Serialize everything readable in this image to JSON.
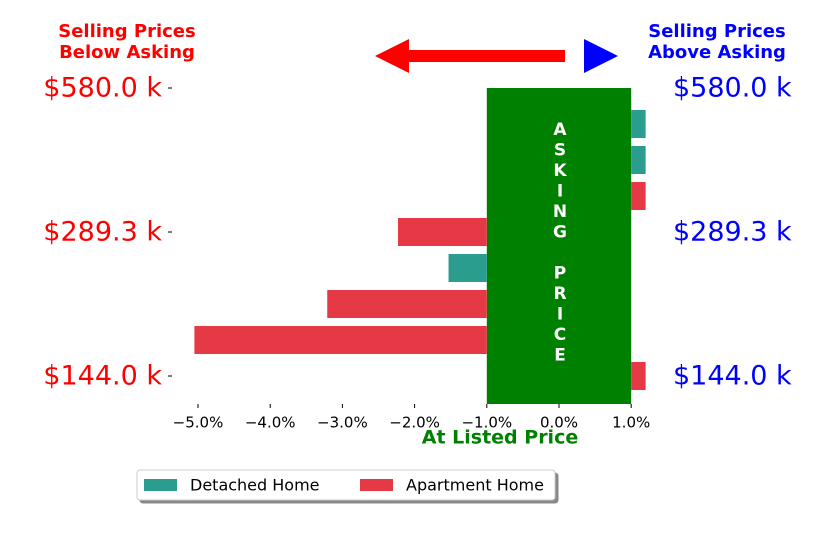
{
  "chart_data": {
    "type": "bar",
    "orientation": "horizontal",
    "left_header": [
      "Selling Prices",
      "Below Asking"
    ],
    "right_header": [
      "Selling Prices",
      "Above Asking"
    ],
    "band_label": "ASKING PRICE",
    "xlabel": "At Listed Price",
    "band": [
      -1.0,
      1.0
    ],
    "band_color": "#008000",
    "categories": [
      "$580.0 k",
      null,
      null,
      null,
      "$289.3 k",
      null,
      null,
      null,
      "$144.0 k"
    ],
    "series": [
      {
        "name": "Detached Home",
        "color": "#2a9d8f",
        "values": [
          null,
          1.2,
          1.2,
          null,
          null,
          -1.53,
          null,
          null,
          null
        ]
      },
      {
        "name": "Apartment Home",
        "color": "#e63946",
        "values": [
          null,
          null,
          null,
          1.2,
          -2.23,
          null,
          -3.21,
          -5.05,
          1.2
        ]
      }
    ],
    "xlim": [
      -5.4,
      1.2
    ],
    "xticks": [
      {
        "value": -5,
        "label": "−5.0%"
      },
      {
        "value": -4,
        "label": "−4.0%"
      },
      {
        "value": -3,
        "label": "−3.0%"
      },
      {
        "value": -2,
        "label": "−2.0%"
      },
      {
        "value": -1,
        "label": "−1.0%"
      },
      {
        "value": 0,
        "label": "0.0%"
      },
      {
        "value": 1,
        "label": "1.0%"
      }
    ],
    "legend": "bottom"
  }
}
